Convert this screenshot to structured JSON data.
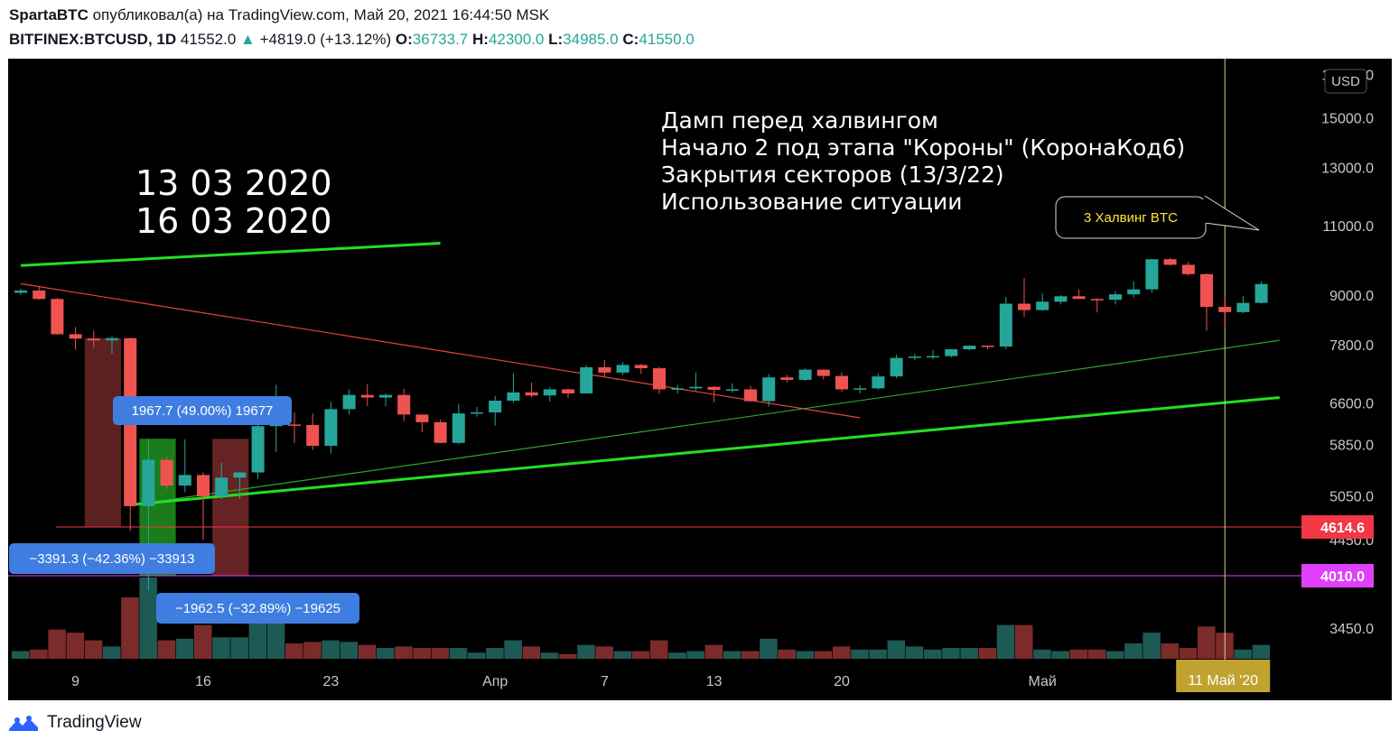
{
  "header": {
    "author": "SpartaBTC",
    "published_text": "опубликовал(а) на TradingView.com, Май 20, 2021 16:44:50 MSK",
    "symbol": "BITFINEX:BTCUSD, 1D",
    "last_price": "41552.0",
    "change_arrow": "▲",
    "change": "+4819.0 (+13.12%)",
    "o_label": "O:",
    "o_value": "36733.7",
    "h_label": "H:",
    "h_value": "42300.0",
    "l_label": "L:",
    "l_value": "34985.0",
    "c_label": "C:",
    "c_value": "41550.0"
  },
  "colors": {
    "up": "#26a69a",
    "down": "#ef5350",
    "background": "#000000",
    "up_volume": "#1e5a54",
    "down_volume": "#7c2b2b",
    "trend_bright": "#21e021",
    "trend_thin_green": "#2ea32e",
    "trend_red": "#e5443f",
    "level_red": "#f23645",
    "level_magenta": "#e040fb",
    "callout_yellow": "#ffe43a",
    "measure_blue": "#3f7de0",
    "date_badge": "#c0a32f"
  },
  "chart_data": {
    "type": "candlestick",
    "currency_label": "USD",
    "y_scale": "log",
    "y_ticks": [
      "17000.0",
      "15000.0",
      "13000.0",
      "11000.0",
      "9000.0",
      "7800.0",
      "6600.0",
      "5850.0",
      "5050.0",
      "4450.0",
      "3450.0"
    ],
    "y_tick_values": [
      17000,
      15000,
      13000,
      11000,
      9000,
      7800,
      6600,
      5850,
      5050,
      4450,
      3450
    ],
    "x_tick_labels": [
      "9",
      "16",
      "23",
      "Апр",
      "7",
      "13",
      "20",
      "Май"
    ],
    "x_tick_dates": [
      "2020-03-09",
      "2020-03-16",
      "2020-03-23",
      "2020-04-01",
      "2020-04-07",
      "2020-04-13",
      "2020-04-20",
      "2020-05-01"
    ],
    "candles": [
      {
        "date": "2020-03-06",
        "o": 9060,
        "h": 9170,
        "l": 9010,
        "c": 9120,
        "v": 0.05
      },
      {
        "date": "2020-03-07",
        "o": 9120,
        "h": 9220,
        "l": 8880,
        "c": 8900,
        "v": 0.06
      },
      {
        "date": "2020-03-08",
        "o": 8900,
        "h": 8920,
        "l": 8030,
        "c": 8040,
        "v": 0.19
      },
      {
        "date": "2020-03-09",
        "o": 8040,
        "h": 8210,
        "l": 7690,
        "c": 7940,
        "v": 0.17
      },
      {
        "date": "2020-03-10",
        "o": 7940,
        "h": 8120,
        "l": 7740,
        "c": 7900,
        "v": 0.12
      },
      {
        "date": "2020-03-11",
        "o": 7900,
        "h": 7990,
        "l": 7600,
        "c": 7950,
        "v": 0.08
      },
      {
        "date": "2020-03-12",
        "o": 7950,
        "h": 7970,
        "l": 4560,
        "c": 4900,
        "v": 0.4
      },
      {
        "date": "2020-03-13",
        "o": 4900,
        "h": 5950,
        "l": 3850,
        "c": 5600,
        "v": 0.53
      },
      {
        "date": "2020-03-14",
        "o": 5600,
        "h": 5650,
        "l": 5150,
        "c": 5200,
        "v": 0.12
      },
      {
        "date": "2020-03-15",
        "o": 5200,
        "h": 5940,
        "l": 5100,
        "c": 5360,
        "v": 0.13
      },
      {
        "date": "2020-03-16",
        "o": 5360,
        "h": 5400,
        "l": 4450,
        "c": 5040,
        "v": 0.22
      },
      {
        "date": "2020-03-17",
        "o": 5040,
        "h": 5550,
        "l": 5000,
        "c": 5320,
        "v": 0.14
      },
      {
        "date": "2020-03-18",
        "o": 5320,
        "h": 5410,
        "l": 5000,
        "c": 5400,
        "v": 0.14
      },
      {
        "date": "2020-03-19",
        "o": 5400,
        "h": 6440,
        "l": 5300,
        "c": 6170,
        "v": 0.28
      },
      {
        "date": "2020-03-20",
        "o": 6170,
        "h": 6950,
        "l": 5730,
        "c": 6200,
        "v": 0.27
      },
      {
        "date": "2020-03-21",
        "o": 6200,
        "h": 6420,
        "l": 5880,
        "c": 6190,
        "v": 0.1
      },
      {
        "date": "2020-03-22",
        "o": 6190,
        "h": 6400,
        "l": 5760,
        "c": 5830,
        "v": 0.11
      },
      {
        "date": "2020-03-23",
        "o": 5830,
        "h": 6620,
        "l": 5700,
        "c": 6480,
        "v": 0.12
      },
      {
        "date": "2020-03-24",
        "o": 6480,
        "h": 6860,
        "l": 6380,
        "c": 6750,
        "v": 0.11
      },
      {
        "date": "2020-03-25",
        "o": 6750,
        "h": 6960,
        "l": 6540,
        "c": 6700,
        "v": 0.09
      },
      {
        "date": "2020-03-26",
        "o": 6700,
        "h": 6780,
        "l": 6530,
        "c": 6750,
        "v": 0.07
      },
      {
        "date": "2020-03-27",
        "o": 6750,
        "h": 6870,
        "l": 6260,
        "c": 6380,
        "v": 0.08
      },
      {
        "date": "2020-03-28",
        "o": 6380,
        "h": 6330,
        "l": 6070,
        "c": 6240,
        "v": 0.07
      },
      {
        "date": "2020-03-29",
        "o": 6240,
        "h": 6290,
        "l": 5870,
        "c": 5880,
        "v": 0.07
      },
      {
        "date": "2020-03-30",
        "o": 5880,
        "h": 6580,
        "l": 5860,
        "c": 6400,
        "v": 0.07
      },
      {
        "date": "2020-03-31",
        "o": 6400,
        "h": 6520,
        "l": 6340,
        "c": 6420,
        "v": 0.04
      },
      {
        "date": "2020-04-01",
        "o": 6420,
        "h": 6730,
        "l": 6180,
        "c": 6640,
        "v": 0.07
      },
      {
        "date": "2020-04-02",
        "o": 6640,
        "h": 7190,
        "l": 6600,
        "c": 6800,
        "v": 0.12
      },
      {
        "date": "2020-04-03",
        "o": 6800,
        "h": 7000,
        "l": 6700,
        "c": 6740,
        "v": 0.08
      },
      {
        "date": "2020-04-04",
        "o": 6740,
        "h": 6900,
        "l": 6620,
        "c": 6860,
        "v": 0.04
      },
      {
        "date": "2020-04-05",
        "o": 6860,
        "h": 6880,
        "l": 6690,
        "c": 6780,
        "v": 0.03
      },
      {
        "date": "2020-04-06",
        "o": 6780,
        "h": 7350,
        "l": 6780,
        "c": 7310,
        "v": 0.09
      },
      {
        "date": "2020-04-07",
        "o": 7310,
        "h": 7470,
        "l": 7100,
        "c": 7200,
        "v": 0.08
      },
      {
        "date": "2020-04-08",
        "o": 7200,
        "h": 7420,
        "l": 7150,
        "c": 7360,
        "v": 0.05
      },
      {
        "date": "2020-04-09",
        "o": 7360,
        "h": 7380,
        "l": 7170,
        "c": 7290,
        "v": 0.05
      },
      {
        "date": "2020-04-10",
        "o": 7290,
        "h": 7320,
        "l": 6770,
        "c": 6860,
        "v": 0.12
      },
      {
        "date": "2020-04-11",
        "o": 6860,
        "h": 6950,
        "l": 6780,
        "c": 6880,
        "v": 0.04
      },
      {
        "date": "2020-04-12",
        "o": 6880,
        "h": 7200,
        "l": 6820,
        "c": 6910,
        "v": 0.05
      },
      {
        "date": "2020-04-13",
        "o": 6910,
        "h": 6920,
        "l": 6610,
        "c": 6850,
        "v": 0.09
      },
      {
        "date": "2020-04-14",
        "o": 6850,
        "h": 6980,
        "l": 6790,
        "c": 6860,
        "v": 0.05
      },
      {
        "date": "2020-04-15",
        "o": 6860,
        "h": 6930,
        "l": 6620,
        "c": 6630,
        "v": 0.05
      },
      {
        "date": "2020-04-16",
        "o": 6630,
        "h": 7170,
        "l": 6530,
        "c": 7100,
        "v": 0.13
      },
      {
        "date": "2020-04-17",
        "o": 7100,
        "h": 7150,
        "l": 7000,
        "c": 7050,
        "v": 0.06
      },
      {
        "date": "2020-04-18",
        "o": 7050,
        "h": 7290,
        "l": 7030,
        "c": 7260,
        "v": 0.05
      },
      {
        "date": "2020-04-19",
        "o": 7260,
        "h": 7260,
        "l": 7060,
        "c": 7130,
        "v": 0.05
      },
      {
        "date": "2020-04-20",
        "o": 7130,
        "h": 7200,
        "l": 6810,
        "c": 6860,
        "v": 0.08
      },
      {
        "date": "2020-04-21",
        "o": 6860,
        "h": 6940,
        "l": 6780,
        "c": 6880,
        "v": 0.06
      },
      {
        "date": "2020-04-22",
        "o": 6880,
        "h": 7180,
        "l": 6850,
        "c": 7120,
        "v": 0.06
      },
      {
        "date": "2020-04-23",
        "o": 7120,
        "h": 7580,
        "l": 7080,
        "c": 7510,
        "v": 0.12
      },
      {
        "date": "2020-04-24",
        "o": 7510,
        "h": 7600,
        "l": 7460,
        "c": 7540,
        "v": 0.08
      },
      {
        "date": "2020-04-25",
        "o": 7540,
        "h": 7680,
        "l": 7480,
        "c": 7550,
        "v": 0.06
      },
      {
        "date": "2020-04-26",
        "o": 7550,
        "h": 7700,
        "l": 7520,
        "c": 7700,
        "v": 0.07
      },
      {
        "date": "2020-04-27",
        "o": 7700,
        "h": 7790,
        "l": 7680,
        "c": 7780,
        "v": 0.07
      },
      {
        "date": "2020-04-28",
        "o": 7780,
        "h": 7790,
        "l": 7700,
        "c": 7760,
        "v": 0.07
      },
      {
        "date": "2020-04-29",
        "o": 7760,
        "h": 8950,
        "l": 7700,
        "c": 8780,
        "v": 0.22
      },
      {
        "date": "2020-04-30",
        "o": 8780,
        "h": 9450,
        "l": 8450,
        "c": 8620,
        "v": 0.22
      },
      {
        "date": "2020-05-01",
        "o": 8620,
        "h": 9040,
        "l": 8600,
        "c": 8830,
        "v": 0.06
      },
      {
        "date": "2020-05-02",
        "o": 8830,
        "h": 9000,
        "l": 8760,
        "c": 8970,
        "v": 0.05
      },
      {
        "date": "2020-05-03",
        "o": 8970,
        "h": 9150,
        "l": 8900,
        "c": 8900,
        "v": 0.06
      },
      {
        "date": "2020-05-04",
        "o": 8900,
        "h": 8920,
        "l": 8560,
        "c": 8880,
        "v": 0.06
      },
      {
        "date": "2020-05-05",
        "o": 8880,
        "h": 9100,
        "l": 8760,
        "c": 9020,
        "v": 0.05
      },
      {
        "date": "2020-05-06",
        "o": 9020,
        "h": 9370,
        "l": 8940,
        "c": 9150,
        "v": 0.1
      },
      {
        "date": "2020-05-07",
        "o": 9150,
        "h": 9980,
        "l": 9060,
        "c": 9980,
        "v": 0.17
      },
      {
        "date": "2020-05-08",
        "o": 9980,
        "h": 10020,
        "l": 9800,
        "c": 9820,
        "v": 0.1
      },
      {
        "date": "2020-05-09",
        "o": 9820,
        "h": 9900,
        "l": 9520,
        "c": 9560,
        "v": 0.07
      },
      {
        "date": "2020-05-10",
        "o": 9560,
        "h": 9580,
        "l": 8120,
        "c": 8700,
        "v": 0.21
      },
      {
        "date": "2020-05-11",
        "o": 8700,
        "h": 8960,
        "l": 8200,
        "c": 8570,
        "v": 0.17
      },
      {
        "date": "2020-05-12",
        "o": 8570,
        "h": 8980,
        "l": 8540,
        "c": 8800,
        "v": 0.06
      },
      {
        "date": "2020-05-13",
        "o": 8800,
        "h": 9360,
        "l": 8780,
        "c": 9290,
        "v": 0.09
      }
    ],
    "horizontal_levels": [
      {
        "label": "4614.6",
        "value": 4614.6
      },
      {
        "label": "4010.0",
        "value": 4010.0
      }
    ],
    "vertical_marker_date": "2020-05-11",
    "x_crosshair_label": "11 Май '20",
    "measurements": [
      {
        "text": "1967.7 (49.00%) 19677"
      },
      {
        "text": "−3391.3 (−42.36%) −33913"
      },
      {
        "text": "−1962.5 (−32.89%) −19625"
      }
    ],
    "annotations": {
      "dates_line1": "13 03 2020",
      "dates_line2": "16 03 2020",
      "text_lines": [
        "Дамп перед халвингом",
        "Начало 2 под этапа \"Короны\" (КоронаКод6)",
        "Закрытия секторов (13/3/22)",
        "Использование ситуации"
      ],
      "callout": "3 Халвинг BTC"
    }
  },
  "footer": {
    "brand": "TradingView"
  }
}
